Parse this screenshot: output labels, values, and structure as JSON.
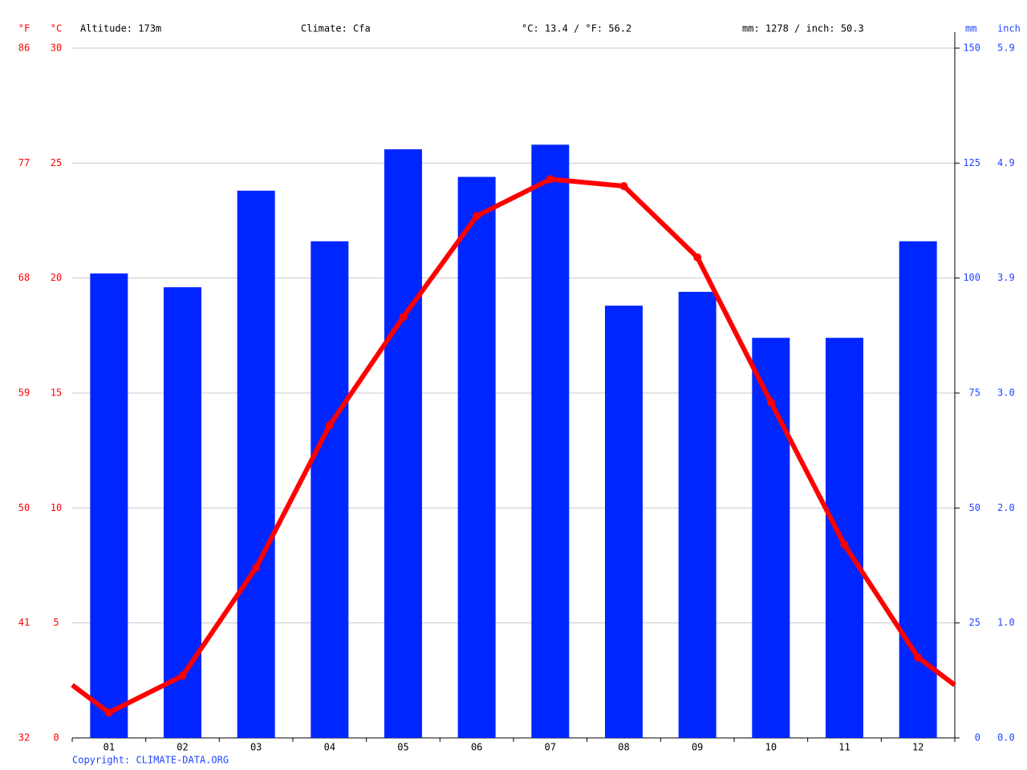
{
  "chart_data": {
    "type": "bar-line",
    "header": [
      "Altitude: 173m",
      "Climate: Cfa",
      "°C: 13.4 / °F: 56.2",
      "mm: 1278 / inch: 50.3"
    ],
    "y_unit": "°C",
    "y_unit_alt": "°F",
    "y2_unit": "mm",
    "y2_unit_alt": "inch",
    "footer": "Copyright: CLIMATE-DATA.ORG",
    "categories": [
      "01",
      "02",
      "03",
      "04",
      "05",
      "06",
      "07",
      "08",
      "09",
      "10",
      "11",
      "12"
    ],
    "series": [
      {
        "type": "bar",
        "axis": "y2",
        "color": "#0026ff",
        "values": [
          101,
          98,
          119,
          108,
          128,
          122,
          129,
          94,
          97,
          87,
          87,
          108
        ]
      },
      {
        "type": "line",
        "color": "#ff0000",
        "values": [
          1.1,
          2.7,
          7.4,
          13.6,
          18.3,
          22.7,
          24.3,
          24.0,
          20.9,
          14.6,
          8.4,
          3.5
        ]
      }
    ],
    "ylim": [
      0,
      30
    ],
    "yticks": [
      0,
      5,
      10,
      15,
      20,
      25,
      30
    ],
    "yticks_alt": [
      {
        "value": 0,
        "label": "32"
      },
      {
        "value": 5,
        "label": "41"
      },
      {
        "value": 10,
        "label": "50"
      },
      {
        "value": 15,
        "label": "59"
      },
      {
        "value": 20,
        "label": "68"
      },
      {
        "value": 25,
        "label": "77"
      },
      {
        "value": 30,
        "label": "86"
      }
    ],
    "y2lim": [
      0,
      150
    ],
    "y2ticks": [
      0,
      25,
      50,
      75,
      100,
      125,
      150
    ],
    "y2ticks_alt": [
      {
        "value": 0,
        "label": "0.0"
      },
      {
        "value": 25,
        "label": "1.0"
      },
      {
        "value": 50,
        "label": "2.0"
      },
      {
        "value": 75,
        "label": "3.0"
      },
      {
        "value": 100,
        "label": "3.9"
      },
      {
        "value": 125,
        "label": "4.9"
      },
      {
        "value": 150,
        "label": "5.9"
      }
    ],
    "grid": true
  }
}
